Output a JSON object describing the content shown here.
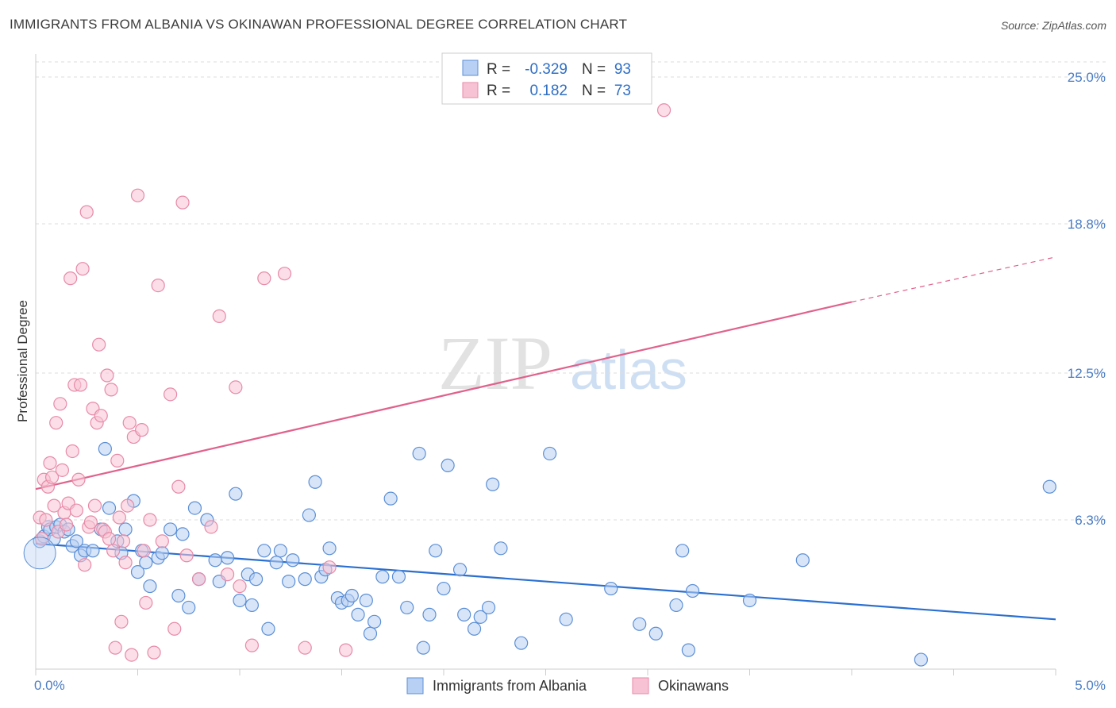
{
  "header": {
    "title": "IMMIGRANTS FROM ALBANIA VS OKINAWAN PROFESSIONAL DEGREE CORRELATION CHART",
    "source": "Source: ZipAtlas.com"
  },
  "watermark": {
    "zip": "ZIP",
    "atlas": "atlas"
  },
  "colors": {
    "blue": "#5b8fd6",
    "blue_fill": "#b8d0f3",
    "blue_line": "#2a6fd0",
    "pink": "#e78aa8",
    "pink_fill": "#f7c2d3",
    "pink_line": "#e0628c",
    "tick": "#4a7cc4",
    "grid": "#dddddd"
  },
  "legend": {
    "rows": [
      {
        "r_label": "R =",
        "r_value": "-0.329",
        "n_label": "N =",
        "n_value": "93"
      },
      {
        "r_label": "R =",
        "r_value": "0.182",
        "n_label": "N =",
        "n_value": "73"
      }
    ]
  },
  "bottom_legend": {
    "items": [
      "Immigrants from Albania",
      "Okinawans"
    ]
  },
  "chart_data": {
    "type": "scatter",
    "title": "IMMIGRANTS FROM ALBANIA VS OKINAWAN PROFESSIONAL DEGREE CORRELATION CHART",
    "xlabel": "",
    "ylabel": "Professional Degree",
    "xlim": [
      0.0,
      5.0
    ],
    "ylim": [
      0.0,
      25.0
    ],
    "x_tick_labels": [
      "0.0%",
      "5.0%"
    ],
    "y_ticks": [
      6.3,
      12.5,
      18.8,
      25.0
    ],
    "y_tick_labels": [
      "6.3%",
      "12.5%",
      "18.8%",
      "25.0%"
    ],
    "grid": true,
    "legend_position": "top-center",
    "series": [
      {
        "name": "Immigrants from Albania",
        "color": "#5b8fd6",
        "r": -0.329,
        "n": 93,
        "trend": {
          "x0": 0.0,
          "y0": 5.3,
          "x1": 5.0,
          "y1": 2.1
        },
        "points": [
          [
            0.02,
            5.4
          ],
          [
            0.04,
            5.6
          ],
          [
            0.06,
            6.0
          ],
          [
            0.07,
            5.9
          ],
          [
            0.09,
            5.5
          ],
          [
            0.1,
            6.0
          ],
          [
            0.12,
            6.1
          ],
          [
            0.14,
            5.8
          ],
          [
            0.16,
            5.9
          ],
          [
            0.18,
            5.2
          ],
          [
            0.2,
            5.4
          ],
          [
            0.22,
            4.8
          ],
          [
            0.24,
            5.0
          ],
          [
            0.28,
            5.0
          ],
          [
            0.32,
            5.9
          ],
          [
            0.34,
            9.3
          ],
          [
            0.36,
            6.8
          ],
          [
            0.4,
            5.4
          ],
          [
            0.42,
            4.9
          ],
          [
            0.44,
            5.9
          ],
          [
            0.48,
            7.1
          ],
          [
            0.5,
            4.1
          ],
          [
            0.52,
            5.0
          ],
          [
            0.54,
            4.5
          ],
          [
            0.56,
            3.5
          ],
          [
            0.6,
            4.7
          ],
          [
            0.62,
            4.9
          ],
          [
            0.66,
            5.9
          ],
          [
            0.7,
            3.1
          ],
          [
            0.72,
            5.7
          ],
          [
            0.75,
            2.6
          ],
          [
            0.78,
            6.8
          ],
          [
            0.8,
            3.8
          ],
          [
            0.84,
            6.3
          ],
          [
            0.88,
            4.6
          ],
          [
            0.9,
            3.7
          ],
          [
            0.94,
            4.7
          ],
          [
            0.98,
            7.4
          ],
          [
            1.0,
            2.9
          ],
          [
            1.04,
            4.0
          ],
          [
            1.06,
            2.7
          ],
          [
            1.08,
            3.8
          ],
          [
            1.12,
            5.0
          ],
          [
            1.14,
            1.7
          ],
          [
            1.18,
            4.5
          ],
          [
            1.2,
            5.0
          ],
          [
            1.24,
            3.7
          ],
          [
            1.26,
            4.6
          ],
          [
            1.32,
            3.8
          ],
          [
            1.34,
            6.5
          ],
          [
            1.37,
            7.9
          ],
          [
            1.4,
            3.9
          ],
          [
            1.42,
            4.2
          ],
          [
            1.44,
            5.1
          ],
          [
            1.48,
            3.0
          ],
          [
            1.5,
            2.8
          ],
          [
            1.53,
            2.9
          ],
          [
            1.55,
            3.1
          ],
          [
            1.58,
            2.3
          ],
          [
            1.62,
            2.9
          ],
          [
            1.64,
            1.5
          ],
          [
            1.66,
            2.0
          ],
          [
            1.7,
            3.9
          ],
          [
            1.74,
            7.2
          ],
          [
            1.78,
            3.9
          ],
          [
            1.82,
            2.6
          ],
          [
            1.88,
            9.1
          ],
          [
            1.9,
            0.9
          ],
          [
            1.93,
            2.3
          ],
          [
            1.96,
            5.0
          ],
          [
            2.0,
            3.4
          ],
          [
            2.02,
            8.6
          ],
          [
            2.08,
            4.2
          ],
          [
            2.1,
            2.3
          ],
          [
            2.15,
            1.7
          ],
          [
            2.18,
            2.2
          ],
          [
            2.22,
            2.6
          ],
          [
            2.24,
            7.8
          ],
          [
            2.28,
            5.1
          ],
          [
            2.38,
            1.1
          ],
          [
            2.52,
            9.1
          ],
          [
            2.6,
            2.1
          ],
          [
            2.82,
            3.4
          ],
          [
            2.96,
            1.9
          ],
          [
            3.04,
            1.5
          ],
          [
            3.14,
            2.7
          ],
          [
            3.17,
            5.0
          ],
          [
            3.2,
            0.8
          ],
          [
            3.22,
            3.3
          ],
          [
            3.5,
            2.9
          ],
          [
            3.76,
            4.6
          ],
          [
            4.34,
            0.4
          ],
          [
            4.97,
            7.7
          ]
        ]
      },
      {
        "name": "Okinawans",
        "color": "#e78aa8",
        "r": 0.182,
        "n": 73,
        "trend": {
          "x0": 0.0,
          "y0": 7.6,
          "x1": 4.0,
          "y1": 15.5,
          "dash_x1": 5.0,
          "dash_y1": 17.4
        },
        "points": [
          [
            0.02,
            6.4
          ],
          [
            0.03,
            5.5
          ],
          [
            0.04,
            8.0
          ],
          [
            0.05,
            6.3
          ],
          [
            0.06,
            7.7
          ],
          [
            0.07,
            8.7
          ],
          [
            0.08,
            8.1
          ],
          [
            0.09,
            6.9
          ],
          [
            0.1,
            10.4
          ],
          [
            0.11,
            5.8
          ],
          [
            0.12,
            11.2
          ],
          [
            0.13,
            8.4
          ],
          [
            0.14,
            6.6
          ],
          [
            0.15,
            6.1
          ],
          [
            0.16,
            7.0
          ],
          [
            0.17,
            16.5
          ],
          [
            0.18,
            9.2
          ],
          [
            0.19,
            12.0
          ],
          [
            0.2,
            6.7
          ],
          [
            0.21,
            8.0
          ],
          [
            0.22,
            12.0
          ],
          [
            0.23,
            16.9
          ],
          [
            0.24,
            4.4
          ],
          [
            0.25,
            19.3
          ],
          [
            0.26,
            6.0
          ],
          [
            0.27,
            6.2
          ],
          [
            0.28,
            11.0
          ],
          [
            0.29,
            6.9
          ],
          [
            0.3,
            10.4
          ],
          [
            0.31,
            13.7
          ],
          [
            0.32,
            10.7
          ],
          [
            0.33,
            5.9
          ],
          [
            0.34,
            5.8
          ],
          [
            0.35,
            12.4
          ],
          [
            0.36,
            5.5
          ],
          [
            0.37,
            11.8
          ],
          [
            0.38,
            5.0
          ],
          [
            0.39,
            0.9
          ],
          [
            0.4,
            8.8
          ],
          [
            0.41,
            6.4
          ],
          [
            0.42,
            2.0
          ],
          [
            0.43,
            5.4
          ],
          [
            0.44,
            4.5
          ],
          [
            0.45,
            6.9
          ],
          [
            0.46,
            10.4
          ],
          [
            0.47,
            0.6
          ],
          [
            0.48,
            9.8
          ],
          [
            0.5,
            20.0
          ],
          [
            0.52,
            10.1
          ],
          [
            0.53,
            5.0
          ],
          [
            0.54,
            2.8
          ],
          [
            0.56,
            6.3
          ],
          [
            0.58,
            0.7
          ],
          [
            0.6,
            16.2
          ],
          [
            0.62,
            5.4
          ],
          [
            0.66,
            11.6
          ],
          [
            0.68,
            1.7
          ],
          [
            0.7,
            7.7
          ],
          [
            0.72,
            19.7
          ],
          [
            0.74,
            4.8
          ],
          [
            0.8,
            3.8
          ],
          [
            0.86,
            6.0
          ],
          [
            0.9,
            14.9
          ],
          [
            0.94,
            4.0
          ],
          [
            0.98,
            11.9
          ],
          [
            1.0,
            3.5
          ],
          [
            1.06,
            1.0
          ],
          [
            1.12,
            16.5
          ],
          [
            1.22,
            16.7
          ],
          [
            1.32,
            0.9
          ],
          [
            1.44,
            4.3
          ],
          [
            1.52,
            0.8
          ],
          [
            3.08,
            23.6
          ]
        ]
      }
    ]
  }
}
